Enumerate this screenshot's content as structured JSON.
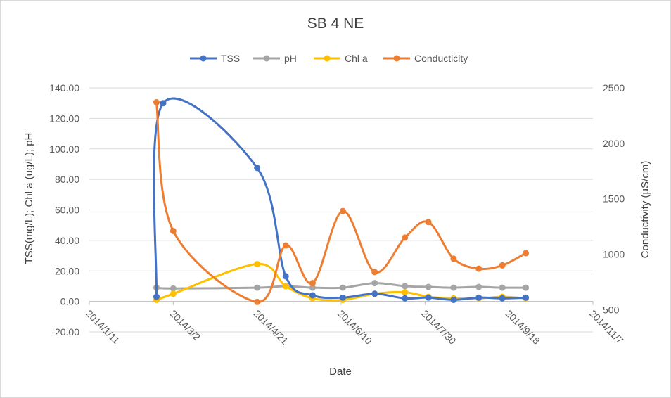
{
  "chart_data": {
    "type": "line",
    "title": "SB 4 NE",
    "xlabel": "Date",
    "ylabel_left": "TSS(mg/L); Chl a (ug/L); pH",
    "ylabel_right": "Conductivity  (µS/cm)",
    "x_ticks": [
      "2014/1/11",
      "2014/3/2",
      "2014/4/21",
      "2014/6/10",
      "2014/7/30",
      "2014/9/18",
      "2014/11/7"
    ],
    "xlim": [
      "2014/1/11",
      "2014/11/7"
    ],
    "ylim_left": [
      -20,
      140
    ],
    "ylim_right": [
      300,
      2500
    ],
    "y_ticks_left": [
      "-20.00",
      "0.00",
      "20.00",
      "40.00",
      "60.00",
      "80.00",
      "100.00",
      "120.00",
      "140.00"
    ],
    "y_ticks_right": [
      "500",
      "1000",
      "1500",
      "2000",
      "2500"
    ],
    "grid": "horizontal",
    "legend": "top",
    "series": [
      {
        "name": "TSS",
        "axis": "left",
        "color": "#4472C4",
        "points": [
          {
            "x": "2014/2/20",
            "y": 3.0
          },
          {
            "x": "2014/2/24",
            "y": 130.0
          },
          {
            "x": "2014/4/21",
            "y": 87.5
          },
          {
            "x": "2014/5/8",
            "y": 16.5
          },
          {
            "x": "2014/5/24",
            "y": 4.0
          },
          {
            "x": "2014/6/11",
            "y": 2.5
          },
          {
            "x": "2014/6/30",
            "y": 5.0
          },
          {
            "x": "2014/7/18",
            "y": 2.0
          },
          {
            "x": "2014/8/1",
            "y": 2.5
          },
          {
            "x": "2014/8/16",
            "y": 1.0
          },
          {
            "x": "2014/8/31",
            "y": 2.5
          },
          {
            "x": "2014/9/14",
            "y": 2.0
          },
          {
            "x": "2014/9/28",
            "y": 2.5
          }
        ]
      },
      {
        "name": "pH",
        "axis": "left",
        "color": "#A5A5A5",
        "points": [
          {
            "x": "2014/2/20",
            "y": 9.0
          },
          {
            "x": "2014/3/2",
            "y": 8.5
          },
          {
            "x": "2014/4/21",
            "y": 9.0
          },
          {
            "x": "2014/5/8",
            "y": 10.0
          },
          {
            "x": "2014/5/24",
            "y": 9.0
          },
          {
            "x": "2014/6/11",
            "y": 9.0
          },
          {
            "x": "2014/6/30",
            "y": 12.0
          },
          {
            "x": "2014/7/18",
            "y": 10.0
          },
          {
            "x": "2014/8/1",
            "y": 9.5
          },
          {
            "x": "2014/8/16",
            "y": 9.0
          },
          {
            "x": "2014/8/31",
            "y": 9.5
          },
          {
            "x": "2014/9/14",
            "y": 9.0
          },
          {
            "x": "2014/9/28",
            "y": 9.0
          }
        ]
      },
      {
        "name": "Chl a",
        "axis": "left",
        "color": "#FFC000",
        "points": [
          {
            "x": "2014/2/20",
            "y": 1.0
          },
          {
            "x": "2014/3/2",
            "y": 5.0
          },
          {
            "x": "2014/4/21",
            "y": 24.5
          },
          {
            "x": "2014/5/8",
            "y": 10.0
          },
          {
            "x": "2014/5/24",
            "y": 2.0
          },
          {
            "x": "2014/6/11",
            "y": 1.0
          },
          {
            "x": "2014/6/30",
            "y": 5.0
          },
          {
            "x": "2014/7/18",
            "y": 6.0
          },
          {
            "x": "2014/8/1",
            "y": 3.0
          },
          {
            "x": "2014/8/16",
            "y": 2.0
          },
          {
            "x": "2014/8/31",
            "y": 2.0
          },
          {
            "x": "2014/9/14",
            "y": 3.0
          },
          {
            "x": "2014/9/28",
            "y": 2.0
          }
        ]
      },
      {
        "name": "Conducticity",
        "axis": "right",
        "color": "#ED7D31",
        "points": [
          {
            "x": "2014/2/20",
            "y": 2370
          },
          {
            "x": "2014/3/2",
            "y": 1210
          },
          {
            "x": "2014/4/21",
            "y": 570
          },
          {
            "x": "2014/5/8",
            "y": 1080
          },
          {
            "x": "2014/5/24",
            "y": 740
          },
          {
            "x": "2014/6/11",
            "y": 1390
          },
          {
            "x": "2014/6/30",
            "y": 840
          },
          {
            "x": "2014/7/18",
            "y": 1150
          },
          {
            "x": "2014/8/1",
            "y": 1290
          },
          {
            "x": "2014/8/16",
            "y": 960
          },
          {
            "x": "2014/8/31",
            "y": 870
          },
          {
            "x": "2014/9/14",
            "y": 900
          },
          {
            "x": "2014/9/28",
            "y": 1010
          }
        ]
      }
    ]
  }
}
